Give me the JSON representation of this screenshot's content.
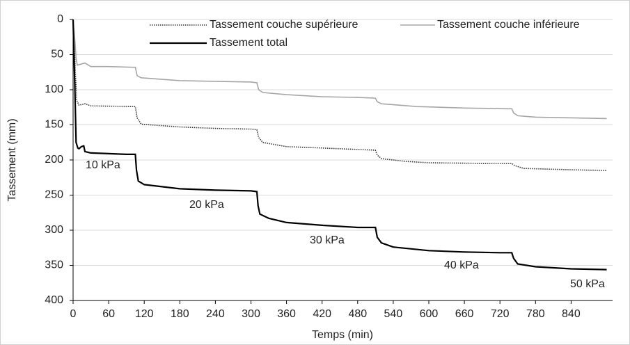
{
  "chart_data": {
    "type": "line",
    "xlabel": "Temps (min)",
    "ylabel": "Tassement (mm)",
    "xlim": [
      0,
      910
    ],
    "ylim": [
      0,
      400
    ],
    "y_inverted": true,
    "grid": true,
    "xticks": [
      0,
      60,
      120,
      180,
      240,
      300,
      360,
      420,
      480,
      540,
      600,
      660,
      720,
      780,
      840
    ],
    "yticks": [
      0,
      50,
      100,
      150,
      200,
      250,
      300,
      350,
      400
    ],
    "series": [
      {
        "name": "Tassement couche supérieure",
        "color": "#333333",
        "dash": "dotted",
        "x": [
          0,
          3,
          6,
          10,
          20,
          30,
          105,
          108,
          115,
          180,
          240,
          300,
          310,
          313,
          320,
          360,
          420,
          480,
          510,
          513,
          520,
          560,
          600,
          700,
          740,
          745,
          760,
          840,
          900
        ],
        "values": [
          0,
          60,
          115,
          122,
          120,
          123,
          124,
          140,
          149,
          153,
          155,
          156,
          157,
          168,
          175,
          181,
          183,
          185,
          186,
          193,
          198,
          202,
          204,
          205,
          205,
          208,
          212,
          214,
          215
        ]
      },
      {
        "name": "Tassement couche inférieure",
        "color": "#a6a6a6",
        "dash": "solid",
        "x": [
          0,
          3,
          5,
          7,
          20,
          30,
          60,
          100,
          105,
          108,
          115,
          180,
          240,
          300,
          310,
          313,
          320,
          360,
          420,
          480,
          510,
          513,
          520,
          580,
          660,
          730,
          740,
          743,
          750,
          780,
          840,
          900
        ],
        "values": [
          0,
          30,
          55,
          65,
          62,
          67,
          67,
          68,
          68,
          80,
          83,
          87,
          88,
          89,
          90,
          100,
          104,
          107,
          110,
          111,
          112,
          117,
          120,
          124,
          126,
          127,
          127,
          133,
          137,
          139,
          140,
          141
        ]
      },
      {
        "name": "Tassement total",
        "color": "#000000",
        "dash": "solid",
        "x": [
          0,
          3,
          5,
          8,
          10,
          14,
          18,
          20,
          30,
          60,
          90,
          105,
          107,
          110,
          120,
          180,
          240,
          300,
          310,
          312,
          315,
          330,
          360,
          420,
          480,
          510,
          513,
          520,
          540,
          600,
          660,
          720,
          740,
          743,
          750,
          780,
          840,
          900
        ],
        "values": [
          0,
          100,
          175,
          183,
          184,
          181,
          180,
          188,
          190,
          191,
          192,
          192,
          215,
          230,
          235,
          241,
          243,
          244,
          245,
          265,
          277,
          283,
          289,
          293,
          296,
          296,
          310,
          318,
          324,
          329,
          331,
          332,
          332,
          340,
          348,
          352,
          355,
          356
        ]
      }
    ],
    "annotations": [
      "10 kPa",
      "20 kPa",
      "30 kPa",
      "40 kPa",
      "50 kPa"
    ]
  }
}
